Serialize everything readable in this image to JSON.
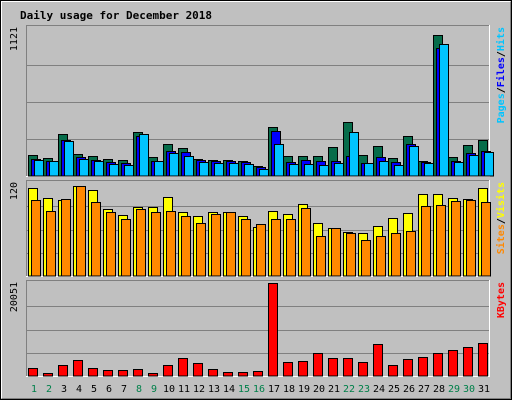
{
  "chart_data": {
    "type": "bar",
    "title": "Daily usage for December 2018",
    "colors": {
      "background": "#c0c0c0",
      "frame": "#ffffff",
      "title": "#0000ff",
      "pages": "#066c4a",
      "files": "#0000ff",
      "hits": "#00c4ff",
      "sites": "#ffff00",
      "visits": "#ff8800",
      "kbytes": "#ff0000",
      "grid": "#808080",
      "weekday": "#000000",
      "weekend": "#00804a"
    },
    "days": [
      "1",
      "2",
      "3",
      "4",
      "5",
      "6",
      "7",
      "8",
      "9",
      "10",
      "11",
      "12",
      "13",
      "14",
      "15",
      "16",
      "17",
      "18",
      "19",
      "20",
      "21",
      "22",
      "23",
      "24",
      "25",
      "26",
      "27",
      "28",
      "29",
      "30",
      "31"
    ],
    "weekend_days": [
      "1",
      "2",
      "8",
      "9",
      "15",
      "16",
      "22",
      "23",
      "29",
      "30"
    ],
    "panels": [
      {
        "id": "hits-panel",
        "ymax_label": "1121",
        "ymax": 1121,
        "legend": [
          {
            "text": "Hits",
            "color": "#00c4ff"
          },
          {
            "text": "/",
            "color": "#000000"
          },
          {
            "text": "Files",
            "color": "#0000ff"
          },
          {
            "text": "/",
            "color": "#000000"
          },
          {
            "text": "Pages",
            "color": "#00c4ff"
          }
        ],
        "series": [
          {
            "name": "Pages",
            "color": "#066c4a",
            "values": [
              160,
              140,
              315,
              165,
              155,
              130,
              120,
              335,
              145,
              240,
              215,
              125,
              120,
              120,
              115,
              75,
              370,
              155,
              150,
              150,
              220,
              410,
              160,
              225,
              135,
              305,
              115,
              1070,
              145,
              235,
              275
            ]
          },
          {
            "name": "Files",
            "color": "#0000ff",
            "values": [
              130,
              115,
              270,
              145,
              120,
              105,
              95,
              300,
              115,
              190,
              185,
              120,
              115,
              115,
              105,
              70,
              340,
              105,
              120,
              110,
              110,
              150,
              100,
              145,
              105,
              240,
              105,
              970,
              115,
              175,
              190
            ]
          },
          {
            "name": "Hits",
            "color": "#00c4ff",
            "values": [
              120,
              110,
              265,
              125,
              110,
              90,
              80,
              315,
              110,
              175,
              150,
              105,
              100,
              100,
              90,
              55,
              240,
              90,
              90,
              80,
              100,
              330,
              100,
              110,
              85,
              230,
              100,
              1000,
              105,
              160,
              185
            ]
          }
        ]
      },
      {
        "id": "visits-panel",
        "ymax_label": "120",
        "ymax": 120,
        "legend": [
          {
            "text": "Visits",
            "color": "#ffff00"
          },
          {
            "text": "/",
            "color": "#000000"
          },
          {
            "text": "Sites",
            "color": "#ff8800"
          }
        ],
        "series": [
          {
            "name": "Visits",
            "color": "#ffff00",
            "values": [
              113,
              100,
              98,
              116,
              111,
              86,
              79,
              89,
              89,
              102,
              82,
              78,
              83,
              83,
              77,
              63,
              84,
              80,
              93,
              69,
              62,
              57,
              56,
              64,
              75,
              81,
              106,
              106,
              100,
              99,
              113
            ]
          },
          {
            "name": "Sites",
            "color": "#ff8800",
            "values": [
              98,
              84,
              99,
              116,
              96,
              83,
              73,
              87,
              83,
              84,
              77,
              68,
              80,
              82,
              73,
              67,
              73,
              74,
              88,
              52,
              62,
              55,
              46,
              51,
              56,
              58,
              90,
              91,
              97,
              98,
              96
            ]
          }
        ]
      },
      {
        "id": "kbytes-panel",
        "ymax_label": "20051",
        "ymax": 20051,
        "legend": [
          {
            "text": "KBytes",
            "color": "#ff0000"
          }
        ],
        "series": [
          {
            "name": "KBytes",
            "color": "#ff0000",
            "values": [
              1650,
              600,
              2300,
              3450,
              1750,
              1300,
              1200,
              1600,
              750,
              2450,
              3950,
              2700,
              1500,
              850,
              850,
              1150,
              20051,
              2950,
              3150,
              5000,
              3850,
              3900,
              2950,
              6850,
              2400,
              3600,
              4050,
              4900,
              5650,
              6300,
              7100
            ]
          }
        ]
      }
    ]
  }
}
